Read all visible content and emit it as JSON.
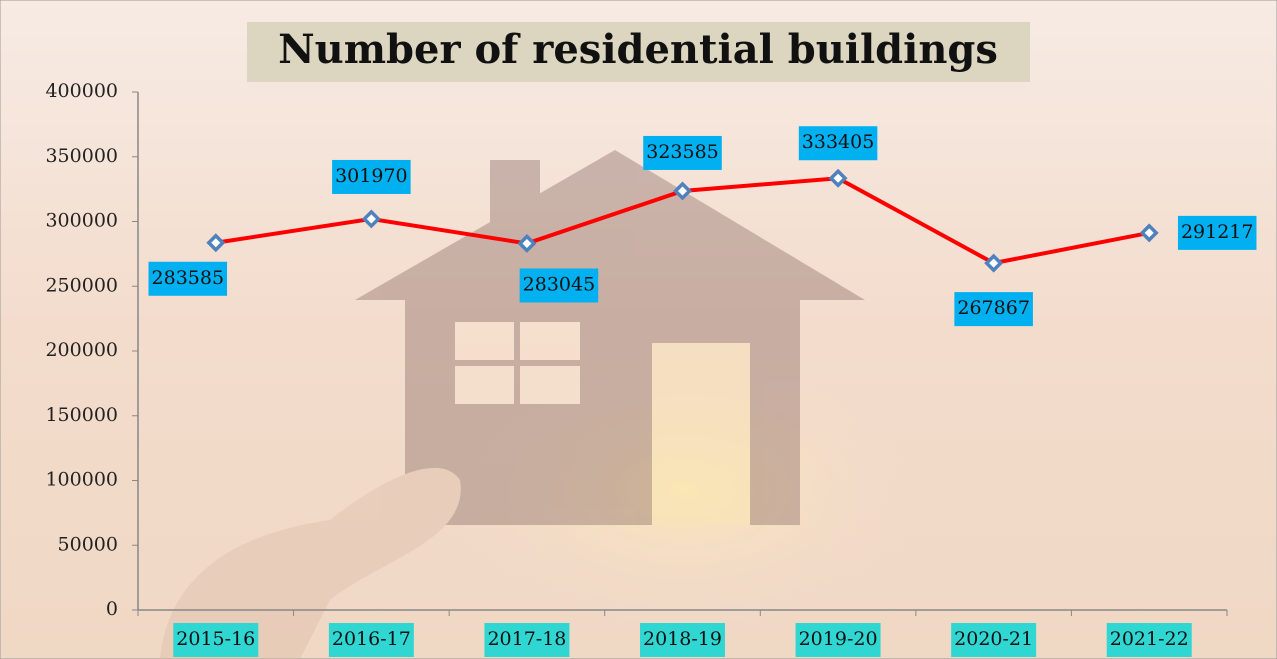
{
  "chart_data": {
    "type": "line",
    "title": "Number of residential buildings",
    "categories": [
      "2015-16",
      "2016-17",
      "2017-18",
      "2018-19",
      "2019-20",
      "2020-21",
      "2021-22"
    ],
    "series": [
      {
        "name": "Number of residential buildings",
        "color": "#ff0000",
        "values": [
          283585,
          301970,
          283045,
          323585,
          333405,
          267867,
          291217
        ]
      }
    ],
    "ylim": [
      0,
      400000
    ],
    "yticks": [
      0,
      50000,
      100000,
      150000,
      200000,
      250000,
      300000,
      350000,
      400000
    ],
    "grid": false
  }
}
